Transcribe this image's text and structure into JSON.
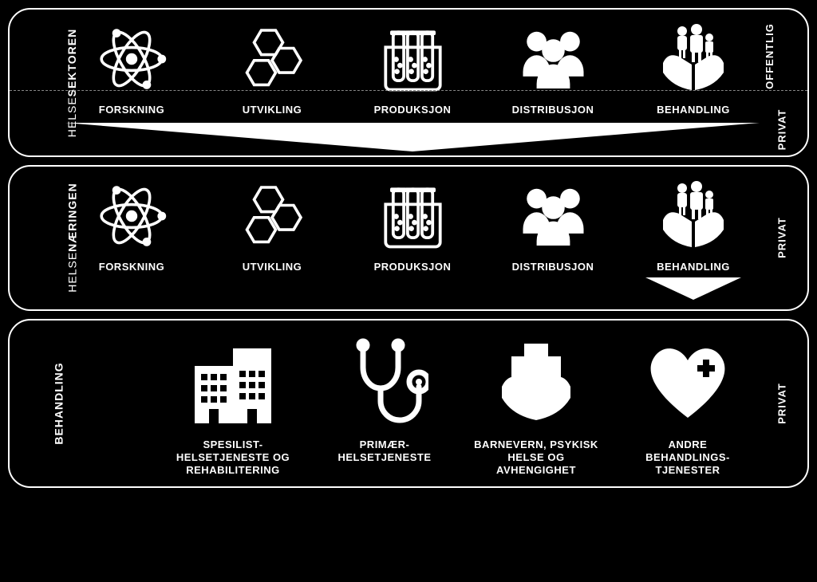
{
  "type": "infographic",
  "background_color": "#000000",
  "stroke_color": "#ffffff",
  "label_fontsize": 13,
  "panels": [
    {
      "left_label_thin": "HELSE",
      "left_label_bold": "SEKTOREN",
      "right_label_top": "OFFENTLIG",
      "right_label_bottom": "PRIVAT",
      "items": [
        {
          "icon": "atom",
          "label": "FORSKNING"
        },
        {
          "icon": "hexagons",
          "label": "UTVIKLING"
        },
        {
          "icon": "testtubes",
          "label": "PRODUKSJON"
        },
        {
          "icon": "people",
          "label": "DISTRIBUSJON"
        },
        {
          "icon": "hands-family",
          "label": "BEHANDLING"
        }
      ],
      "show_wide_arrow": true
    },
    {
      "left_label_thin": "HELSE",
      "left_label_bold": "NÆRINGEN",
      "right_label_mid": "PRIVAT",
      "items": [
        {
          "icon": "atom",
          "label": "FORSKNING"
        },
        {
          "icon": "hexagons",
          "label": "UTVIKLING"
        },
        {
          "icon": "testtubes",
          "label": "PRODUKSJON"
        },
        {
          "icon": "people",
          "label": "DISTRIBUSJON"
        },
        {
          "icon": "hands-family",
          "label": "BEHANDLING",
          "show_small_arrow": true
        }
      ]
    },
    {
      "left_label_bold": "BEHANDLING",
      "right_label_mid": "PRIVAT",
      "items": [
        {
          "icon": "hospital",
          "label": "SPESILIST-\nHELSETJENESTE OG\nREHABILITERING"
        },
        {
          "icon": "stethoscope",
          "label": "PRIMÆR-\nHELSETJENESTE"
        },
        {
          "icon": "hands-cross",
          "label": "BARNEVERN, PSYKISK\nHELSE OG\nAVHENGIGHET"
        },
        {
          "icon": "heart-cross",
          "label": "ANDRE\nBEHANDLINGS-\nTJENESTER"
        }
      ],
      "tall_icons": true
    }
  ]
}
